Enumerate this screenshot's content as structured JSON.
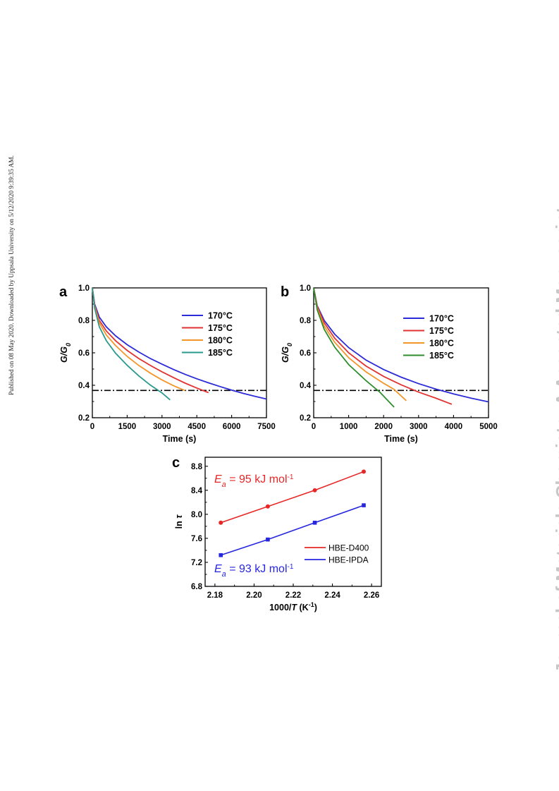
{
  "side_note": "Published on 08 May 2020. Downloaded by Uppsala University on 5/12/2020 9:39:35 AM.",
  "watermark": "Journal of Materials Chemistry A Accepted Manuscript",
  "colors": {
    "170": "#2b2bd8",
    "175": "#e23232",
    "180": "#f2962a",
    "185a": "#2a9a8e",
    "185b": "#2e8e2e",
    "hbe_d400": "#e82626",
    "hbe_ipda": "#2626e0",
    "threshold_line": "#000000"
  },
  "chart_data": [
    {
      "panel": "a",
      "type": "line",
      "xlabel": "Time (s)",
      "ylabel_main": "G/G",
      "ylabel_sub": "0",
      "xlim": [
        0,
        7500
      ],
      "ylim": [
        0.2,
        1.0
      ],
      "xticks": [
        "0",
        "1500",
        "3000",
        "4500",
        "6000",
        "7500"
      ],
      "yticks": [
        "0.2",
        "0.4",
        "0.6",
        "0.8",
        "1.0"
      ],
      "threshold": 0.368,
      "series": [
        {
          "name": "170°C",
          "color_key": "170",
          "x": [
            0,
            100,
            300,
            600,
            1000,
            1500,
            2000,
            2500,
            3000,
            3500,
            4000,
            4500,
            5000,
            5500,
            6000,
            6500,
            7000,
            7500
          ],
          "y": [
            1.0,
            0.9,
            0.82,
            0.76,
            0.705,
            0.65,
            0.605,
            0.565,
            0.53,
            0.497,
            0.467,
            0.44,
            0.415,
            0.392,
            0.37,
            0.35,
            0.332,
            0.315
          ]
        },
        {
          "name": "175°C",
          "color_key": "175",
          "x": [
            0,
            100,
            300,
            600,
            1000,
            1500,
            2000,
            2500,
            3000,
            3500,
            4000,
            4500,
            5000
          ],
          "y": [
            1.0,
            0.89,
            0.8,
            0.735,
            0.675,
            0.615,
            0.565,
            0.522,
            0.483,
            0.447,
            0.413,
            0.383,
            0.355
          ]
        },
        {
          "name": "180°C",
          "color_key": "180",
          "x": [
            0,
            100,
            300,
            600,
            1000,
            1500,
            2000,
            2500,
            3000,
            3500,
            4000
          ],
          "y": [
            1.0,
            0.885,
            0.785,
            0.71,
            0.645,
            0.578,
            0.522,
            0.475,
            0.433,
            0.397,
            0.367
          ]
        },
        {
          "name": "185°C",
          "color_key": "185a",
          "x": [
            0,
            100,
            300,
            600,
            1000,
            1500,
            2000,
            2500,
            3000,
            3350
          ],
          "y": [
            1.0,
            0.875,
            0.76,
            0.675,
            0.598,
            0.523,
            0.458,
            0.401,
            0.353,
            0.31
          ]
        }
      ]
    },
    {
      "panel": "b",
      "type": "line",
      "xlabel": "Time (s)",
      "ylabel_main": "G/G",
      "ylabel_sub": "0",
      "xlim": [
        0,
        5000
      ],
      "ylim": [
        0.2,
        1.0
      ],
      "xticks": [
        "0",
        "1000",
        "2000",
        "3000",
        "4000",
        "5000"
      ],
      "yticks": [
        "0.2",
        "0.4",
        "0.6",
        "0.8",
        "1.0"
      ],
      "threshold": 0.368,
      "series": [
        {
          "name": "170°C",
          "color_key": "170",
          "x": [
            0,
            100,
            300,
            600,
            1000,
            1500,
            2000,
            2500,
            3000,
            3500,
            4000,
            4500,
            5000
          ],
          "y": [
            1.0,
            0.89,
            0.8,
            0.715,
            0.632,
            0.555,
            0.497,
            0.45,
            0.41,
            0.376,
            0.347,
            0.321,
            0.298
          ]
        },
        {
          "name": "175°C",
          "color_key": "175",
          "x": [
            0,
            100,
            300,
            600,
            1000,
            1500,
            2000,
            2500,
            3000,
            3500,
            3950
          ],
          "y": [
            1.0,
            0.885,
            0.785,
            0.69,
            0.6,
            0.518,
            0.455,
            0.403,
            0.358,
            0.32,
            0.283
          ]
        },
        {
          "name": "180°C",
          "color_key": "180",
          "x": [
            0,
            100,
            300,
            600,
            1000,
            1500,
            2000,
            2300,
            2650
          ],
          "y": [
            1.0,
            0.875,
            0.765,
            0.665,
            0.57,
            0.482,
            0.412,
            0.375,
            0.305
          ]
        },
        {
          "name": "185°C",
          "color_key": "185b",
          "x": [
            0,
            100,
            300,
            600,
            1000,
            1500,
            1900,
            2300
          ],
          "y": [
            1.0,
            0.865,
            0.745,
            0.635,
            0.528,
            0.428,
            0.356,
            0.265
          ]
        }
      ]
    },
    {
      "panel": "c",
      "type": "scatter",
      "xlabel_main": "1000/",
      "xlabel_italic": "T",
      "xlabel_unit": " (K",
      "xlabel_sup": "-1",
      "xlabel_close": ")",
      "ylabel_main": "ln",
      "ylabel_italic": "τ",
      "xlim": [
        2.175,
        2.265
      ],
      "ylim": [
        6.8,
        8.95
      ],
      "xticks": [
        "2.18",
        "2.20",
        "2.22",
        "2.24",
        "2.26"
      ],
      "yticks": [
        "6.8",
        "7.2",
        "7.6",
        "8.0",
        "8.4",
        "8.8"
      ],
      "series": [
        {
          "name": "HBE-D400",
          "color_key": "hbe_d400",
          "marker": "circle",
          "x": [
            2.183,
            2.207,
            2.231,
            2.256
          ],
          "y": [
            7.86,
            8.13,
            8.4,
            8.71
          ]
        },
        {
          "name": "HBE-IPDA",
          "color_key": "hbe_ipda",
          "marker": "square",
          "x": [
            2.183,
            2.207,
            2.231,
            2.256
          ],
          "y": [
            7.32,
            7.58,
            7.86,
            8.15
          ]
        }
      ],
      "annotations": [
        {
          "color_key": "hbe_d400",
          "italic": "E",
          "sub": "a",
          "text": " = 95 kJ mol",
          "sup": "-1"
        },
        {
          "color_key": "hbe_ipda",
          "italic": "E",
          "sub": "a",
          "text": " = 93 kJ mol",
          "sup": "-1"
        }
      ]
    }
  ]
}
